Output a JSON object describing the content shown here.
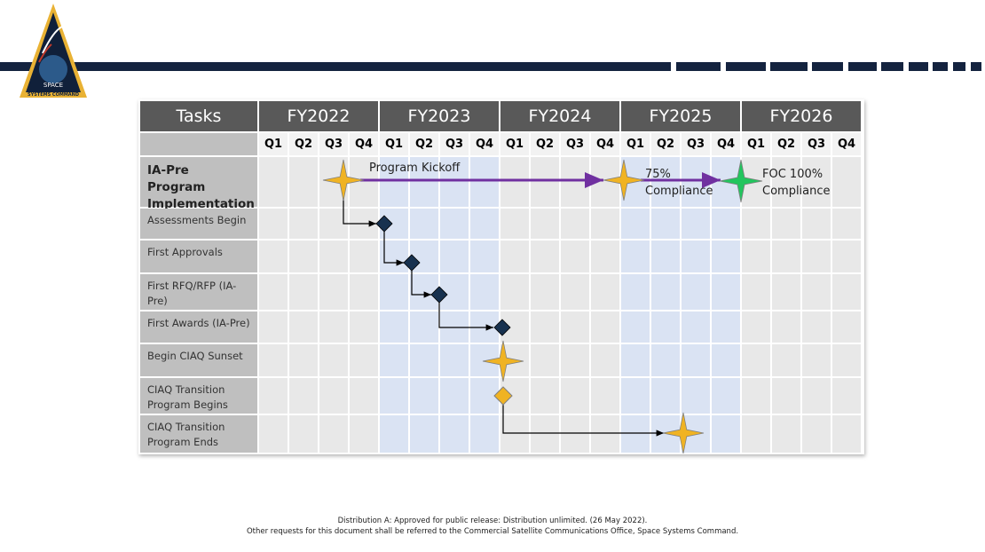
{
  "logo": {
    "top": "SPACE",
    "bottom": "SYSTEMS COMMAND"
  },
  "table": {
    "corner": "Tasks",
    "years": [
      "FY2022",
      "FY2023",
      "FY2024",
      "FY2025",
      "FY2026"
    ],
    "quarters": [
      "Q1",
      "Q2",
      "Q3",
      "Q4",
      "Q1",
      "Q2",
      "Q3",
      "Q4",
      "Q1",
      "Q2",
      "Q3",
      "Q4",
      "Q1",
      "Q2",
      "Q3",
      "Q4",
      "Q1",
      "Q2",
      "Q3",
      "Q4"
    ],
    "tasks": [
      "IA-Pre Program Implementation",
      "Assessments Begin",
      "First Approvals",
      "First RFQ/RFP (IA-Pre)",
      "First Awards (IA-Pre)",
      "Begin CIAQ Sunset",
      "CIAQ Transition Program Begins",
      "CIAQ Transition Program Ends"
    ]
  },
  "annotations": [
    "Program Kickoff",
    "75% Compliance",
    "FOC 100% Compliance"
  ],
  "footer": [
    "Distribution A: Approved for public release: Distribution unlimited. (26 May 2022).",
    "Other requests for this document shall be referred to the Commercial Satellite Communications Office, Space Systems Command."
  ]
}
